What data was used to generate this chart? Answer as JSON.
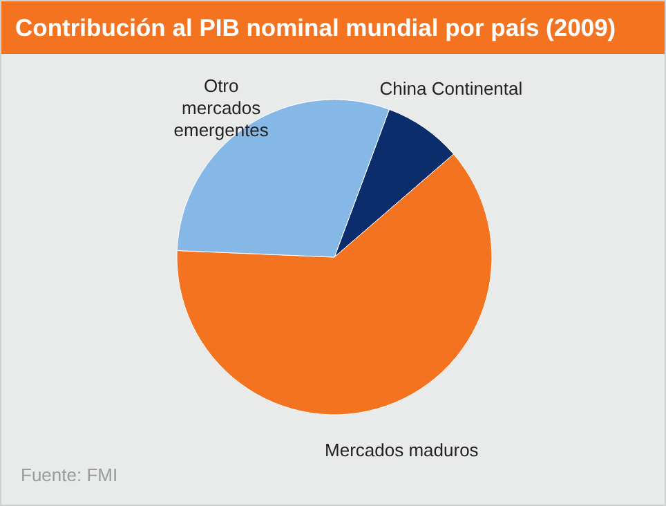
{
  "chart_data": {
    "type": "pie",
    "title": "Contribución al PIB nominal mundial por país (2009)",
    "categories": [
      "China Continental",
      "Mercados maduros",
      "Otro mercados emergentes"
    ],
    "values": [
      8,
      62,
      30
    ],
    "colors": [
      "#0b2d6b",
      "#f47321",
      "#85b8e6"
    ],
    "annotations": [
      "Fuente: FMI"
    ]
  }
}
